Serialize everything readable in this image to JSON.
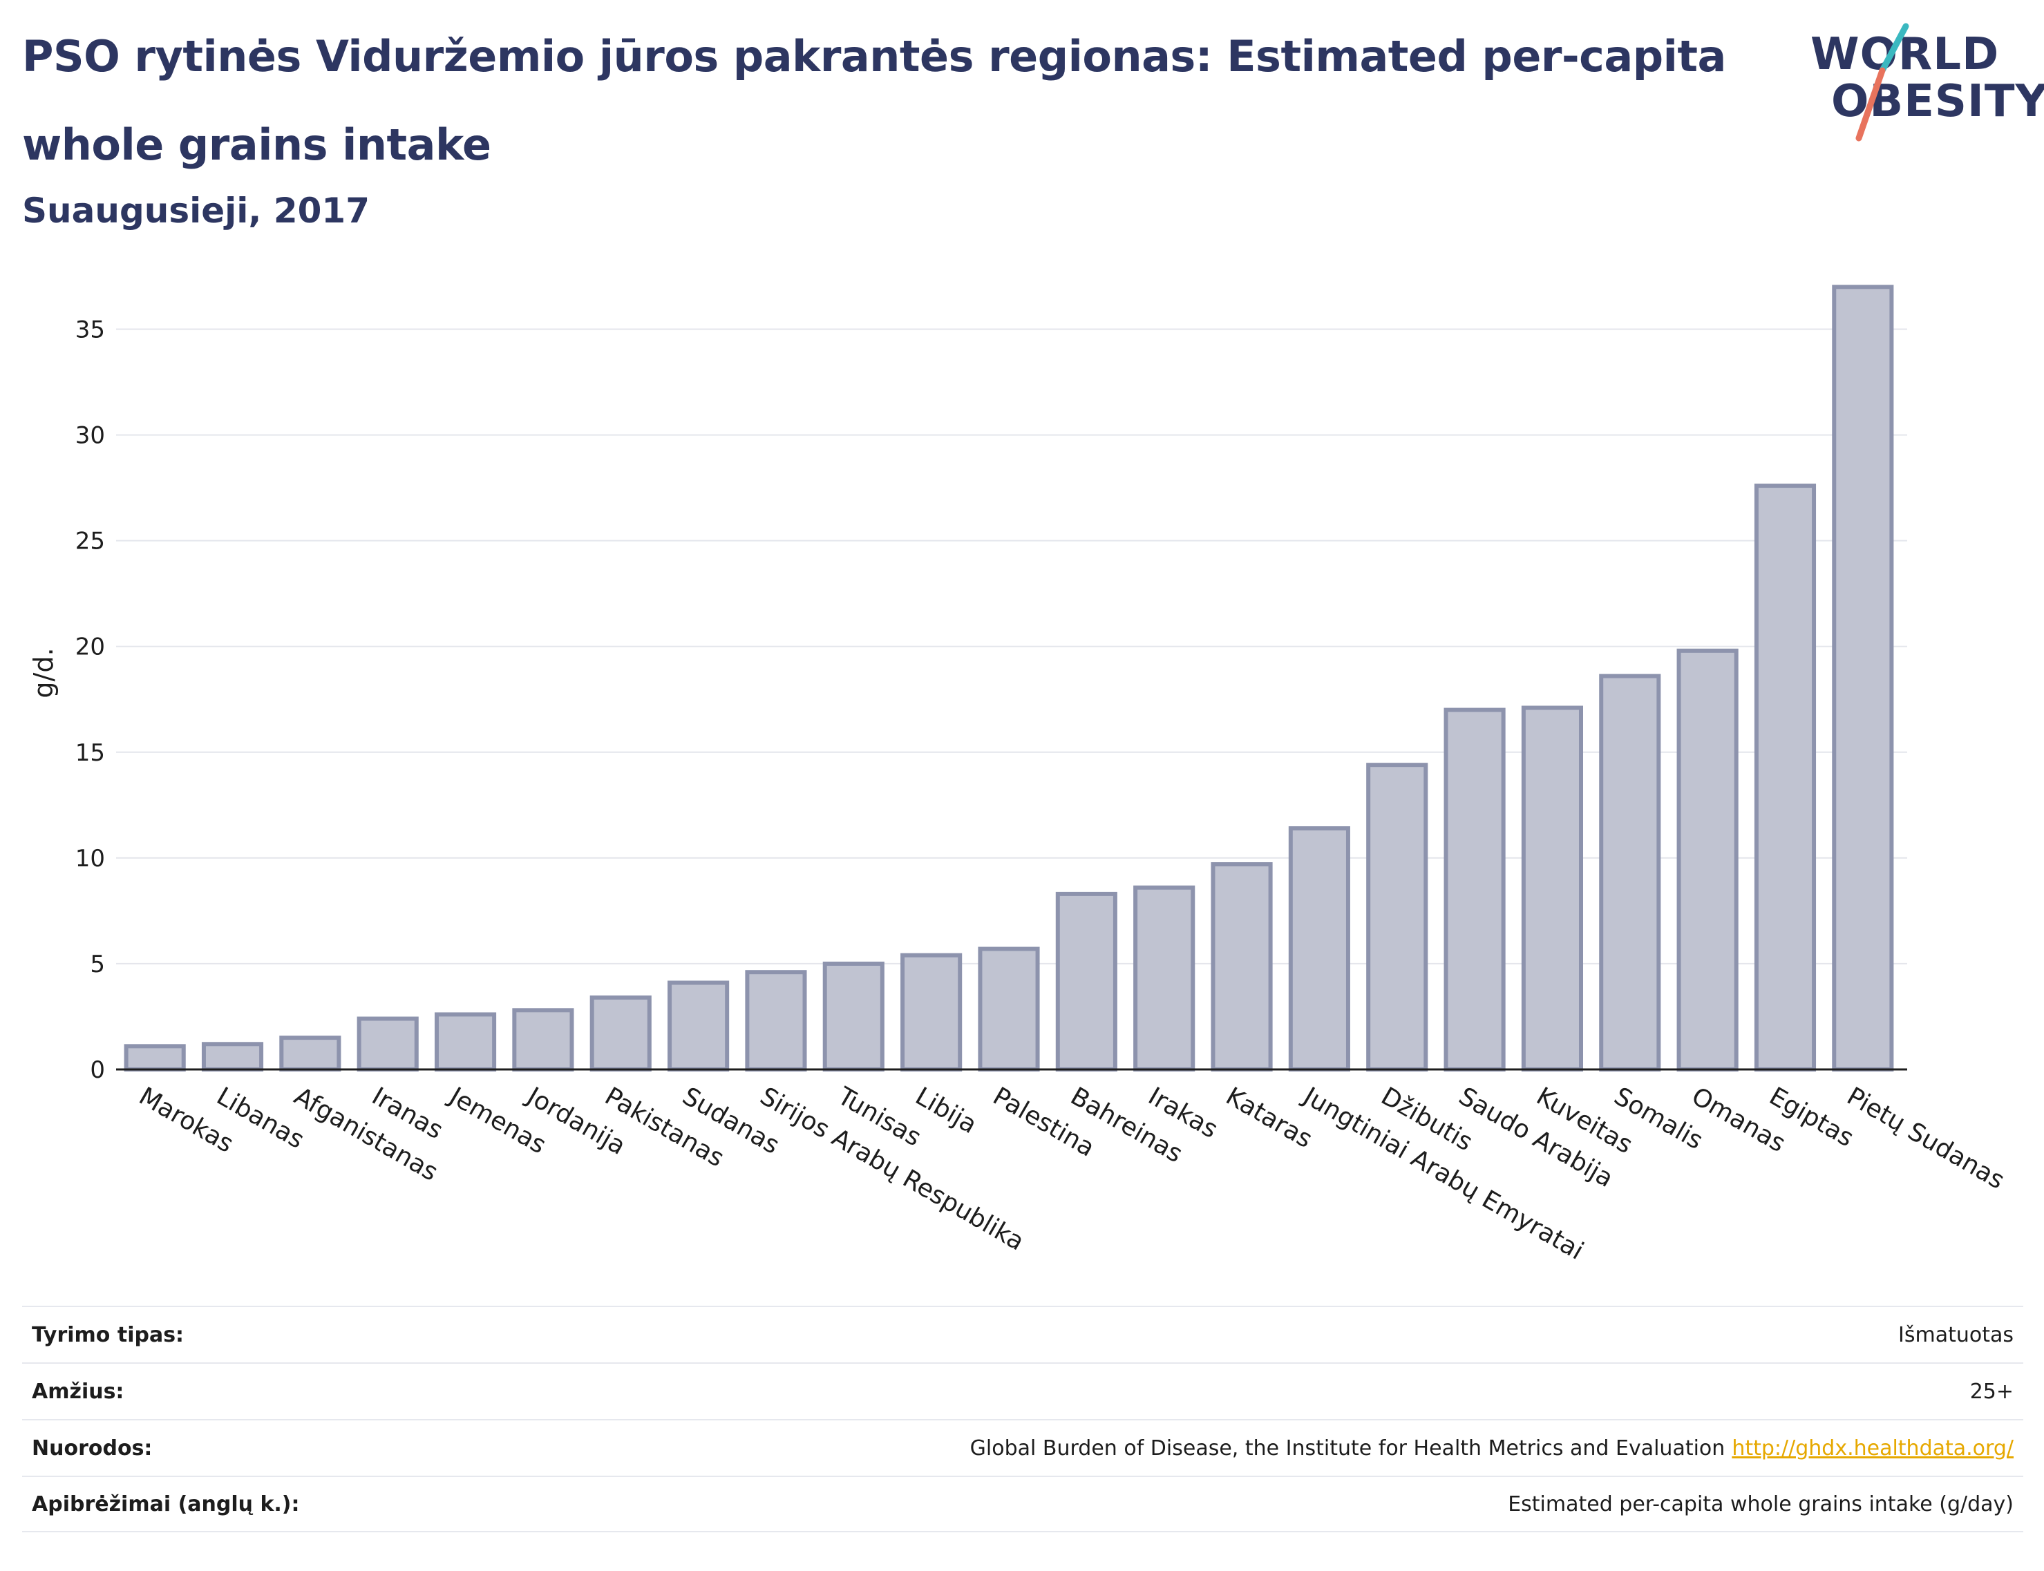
{
  "header": {
    "title_line1": "PSO rytinės Viduržemio jūros pakrantės regionas: Estimated per-capita",
    "title_line2": "whole grains intake",
    "subtitle": "Suaugusieji, 2017"
  },
  "logo": {
    "line1": "WORLD",
    "line2": "OBESITY"
  },
  "colors": {
    "bar_fill": "#c0c3d1",
    "bar_stroke": "#8d93ad",
    "title": "#2d3661",
    "link": "#e6a800",
    "logo_teal": "#3ab8c0",
    "logo_coral": "#e8735d"
  },
  "chart_data": {
    "type": "bar",
    "ylabel": "g/d.",
    "xlabel": "",
    "ylim": [
      0,
      37.5
    ],
    "yticks": [
      0,
      5,
      10,
      15,
      20,
      25,
      30,
      35
    ],
    "grid": true,
    "categories": [
      "Marokas",
      "Libanas",
      "Afganistanas",
      "Iranas",
      "Jemenas",
      "Jordanija",
      "Pakistanas",
      "Sudanas",
      "Sirijos Arabų Respublika",
      "Tunisas",
      "Libija",
      "Palestina",
      "Bahreinas",
      "Irakas",
      "Kataras",
      "Jungtiniai Arabų Emyratai",
      "Džibutis",
      "Saudo Arabija",
      "Kuveitas",
      "Somalis",
      "Omanas",
      "Egiptas",
      "Pietų Sudanas"
    ],
    "values": [
      1.1,
      1.2,
      1.5,
      2.4,
      2.6,
      2.8,
      3.4,
      4.1,
      4.6,
      5.0,
      5.4,
      5.7,
      8.3,
      8.6,
      9.7,
      11.4,
      14.4,
      17.0,
      17.1,
      18.6,
      19.8,
      27.6,
      37.0
    ]
  },
  "meta": [
    {
      "key": "Tyrimo tipas:",
      "value": "Išmatuotas",
      "link": ""
    },
    {
      "key": "Amžius:",
      "value": "25+",
      "link": ""
    },
    {
      "key": "Nuorodos:",
      "value": "Global Burden of Disease, the Institute for Health Metrics and Evaluation",
      "link": "http://ghdx.healthdata.org/"
    },
    {
      "key": "Apibrėžimai (anglų k.):",
      "value": "Estimated per-capita whole grains intake (g/day)",
      "link": ""
    }
  ]
}
